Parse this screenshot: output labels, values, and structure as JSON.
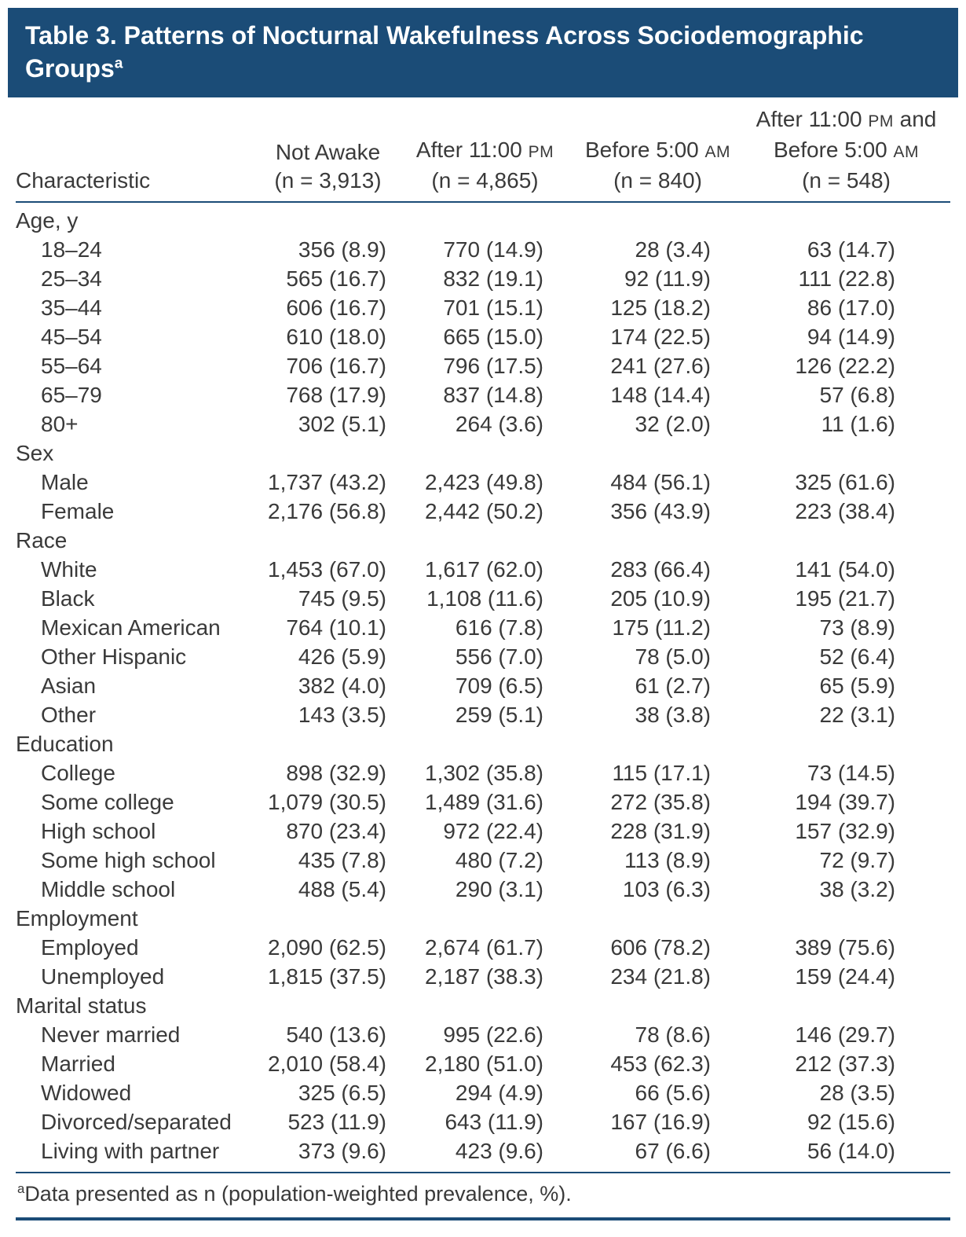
{
  "colors": {
    "banner_bg": "#1b4c77",
    "rule": "#1b4c77",
    "text": "#3a3a3a",
    "title_text": "#ffffff"
  },
  "title": {
    "text": "Table 3. Patterns of Nocturnal Wakefulness Across Sociodemographic Groups",
    "footnote_marker": "a"
  },
  "header": {
    "characteristic_label": "Characteristic",
    "columns": [
      {
        "lines": [
          "Not Awake",
          "(n = 3,913)"
        ]
      },
      {
        "lines": [
          "After 11:00 PM",
          "(n = 4,865)"
        ]
      },
      {
        "lines": [
          "Before 5:00 AM",
          "(n = 840)"
        ]
      },
      {
        "lines": [
          "After 11:00 PM and",
          "Before 5:00 AM",
          "(n = 548)"
        ]
      }
    ]
  },
  "sections": [
    {
      "label": "Age, y",
      "rows": [
        {
          "label": "18–24",
          "values": [
            "356 (8.9)",
            "770 (14.9)",
            "28 (3.4)",
            "63 (14.7)"
          ]
        },
        {
          "label": "25–34",
          "values": [
            "565 (16.7)",
            "832 (19.1)",
            "92 (11.9)",
            "111 (22.8)"
          ]
        },
        {
          "label": "35–44",
          "values": [
            "606 (16.7)",
            "701 (15.1)",
            "125 (18.2)",
            "86 (17.0)"
          ]
        },
        {
          "label": "45–54",
          "values": [
            "610 (18.0)",
            "665 (15.0)",
            "174 (22.5)",
            "94 (14.9)"
          ]
        },
        {
          "label": "55–64",
          "values": [
            "706 (16.7)",
            "796 (17.5)",
            "241 (27.6)",
            "126 (22.2)"
          ]
        },
        {
          "label": "65–79",
          "values": [
            "768 (17.9)",
            "837 (14.8)",
            "148 (14.4)",
            "57 (6.8)"
          ]
        },
        {
          "label": "80+",
          "values": [
            "302 (5.1)",
            "264 (3.6)",
            "32 (2.0)",
            "11 (1.6)"
          ]
        }
      ]
    },
    {
      "label": "Sex",
      "rows": [
        {
          "label": "Male",
          "values": [
            "1,737 (43.2)",
            "2,423 (49.8)",
            "484 (56.1)",
            "325 (61.6)"
          ]
        },
        {
          "label": "Female",
          "values": [
            "2,176 (56.8)",
            "2,442 (50.2)",
            "356 (43.9)",
            "223 (38.4)"
          ]
        }
      ]
    },
    {
      "label": "Race",
      "rows": [
        {
          "label": "White",
          "values": [
            "1,453 (67.0)",
            "1,617 (62.0)",
            "283 (66.4)",
            "141 (54.0)"
          ]
        },
        {
          "label": "Black",
          "values": [
            "745 (9.5)",
            "1,108 (11.6)",
            "205 (10.9)",
            "195 (21.7)"
          ]
        },
        {
          "label": "Mexican American",
          "values": [
            "764 (10.1)",
            "616 (7.8)",
            "175 (11.2)",
            "73 (8.9)"
          ]
        },
        {
          "label": "Other Hispanic",
          "values": [
            "426 (5.9)",
            "556 (7.0)",
            "78 (5.0)",
            "52 (6.4)"
          ]
        },
        {
          "label": "Asian",
          "values": [
            "382 (4.0)",
            "709 (6.5)",
            "61 (2.7)",
            "65 (5.9)"
          ]
        },
        {
          "label": "Other",
          "values": [
            "143 (3.5)",
            "259 (5.1)",
            "38 (3.8)",
            "22 (3.1)"
          ]
        }
      ]
    },
    {
      "label": "Education",
      "rows": [
        {
          "label": "College",
          "values": [
            "898 (32.9)",
            "1,302 (35.8)",
            "115 (17.1)",
            "73 (14.5)"
          ]
        },
        {
          "label": "Some college",
          "values": [
            "1,079 (30.5)",
            "1,489 (31.6)",
            "272 (35.8)",
            "194 (39.7)"
          ]
        },
        {
          "label": "High school",
          "values": [
            "870 (23.4)",
            "972 (22.4)",
            "228 (31.9)",
            "157 (32.9)"
          ]
        },
        {
          "label": "Some high school",
          "values": [
            "435 (7.8)",
            "480 (7.2)",
            "113 (8.9)",
            "72 (9.7)"
          ]
        },
        {
          "label": "Middle school",
          "values": [
            "488 (5.4)",
            "290 (3.1)",
            "103 (6.3)",
            "38 (3.2)"
          ]
        }
      ]
    },
    {
      "label": "Employment",
      "rows": [
        {
          "label": "Employed",
          "values": [
            "2,090 (62.5)",
            "2,674 (61.7)",
            "606 (78.2)",
            "389 (75.6)"
          ]
        },
        {
          "label": "Unemployed",
          "values": [
            "1,815 (37.5)",
            "2,187 (38.3)",
            "234 (21.8)",
            "159 (24.4)"
          ]
        }
      ]
    },
    {
      "label": "Marital status",
      "rows": [
        {
          "label": "Never married",
          "values": [
            "540 (13.6)",
            "995 (22.6)",
            "78 (8.6)",
            "146 (29.7)"
          ]
        },
        {
          "label": "Married",
          "values": [
            "2,010 (58.4)",
            "2,180 (51.0)",
            "453 (62.3)",
            "212 (37.3)"
          ]
        },
        {
          "label": "Widowed",
          "values": [
            "325 (6.5)",
            "294 (4.9)",
            "66 (5.6)",
            "28 (3.5)"
          ]
        },
        {
          "label": "Divorced/separated",
          "values": [
            "523 (11.9)",
            "643 (11.9)",
            "167 (16.9)",
            "92 (15.6)"
          ]
        },
        {
          "label": "Living with partner",
          "values": [
            "373 (9.6)",
            "423 (9.6)",
            "67 (6.6)",
            "56 (14.0)"
          ]
        }
      ]
    }
  ],
  "footnote": {
    "marker": "a",
    "text": "Data presented as n (population-weighted prevalence, %)."
  }
}
